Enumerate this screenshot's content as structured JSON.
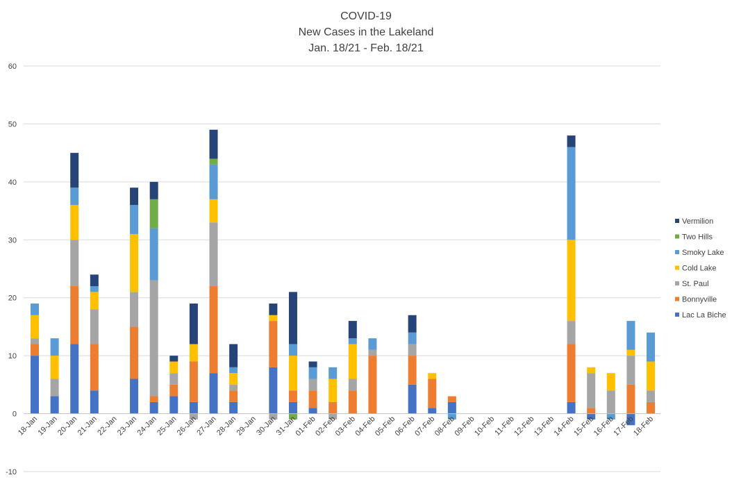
{
  "chart_data": {
    "type": "bar",
    "stacked": true,
    "title": [
      "COVID-19",
      "New Cases in the Lakeland",
      "Jan. 18/21 - Feb. 18/21"
    ],
    "xlabel": "",
    "ylabel": "",
    "ylim": [
      -10,
      60
    ],
    "yticks": [
      -10,
      0,
      10,
      20,
      30,
      40,
      50,
      60
    ],
    "grid": true,
    "legend_position": "right",
    "categories": [
      "18-Jan",
      "19-Jan",
      "20-Jan",
      "21-Jan",
      "22-Jan",
      "23-Jan",
      "24-Jan",
      "25-Jan",
      "26-Jan",
      "27-Jan",
      "28-Jan",
      "29-Jan",
      "30-Jan",
      "31-Jan",
      "01-Feb",
      "02-Feb",
      "03-Feb",
      "04-Feb",
      "05-Feb",
      "06-Feb",
      "07-Feb",
      "08-Feb",
      "09-Feb",
      "10-Feb",
      "11-Feb",
      "12-Feb",
      "13-Feb",
      "14-Feb",
      "15-Feb",
      "16-Feb",
      "17-Feb",
      "18-Feb"
    ],
    "series": [
      {
        "name": "Lac La Biche",
        "color": "#4472C4",
        "values": [
          10,
          3,
          12,
          4,
          0,
          6,
          2,
          3,
          2,
          7,
          2,
          0,
          8,
          2,
          1,
          0,
          0,
          0,
          0,
          5,
          1,
          2,
          0,
          0,
          0,
          0,
          0,
          2,
          -1,
          0,
          -2,
          0
        ]
      },
      {
        "name": "Bonnyville",
        "color": "#ED7D31",
        "values": [
          2,
          0,
          10,
          8,
          0,
          9,
          1,
          2,
          7,
          15,
          2,
          0,
          8,
          2,
          3,
          2,
          4,
          10,
          0,
          5,
          5,
          1,
          0,
          0,
          0,
          0,
          0,
          10,
          1,
          0,
          5,
          2
        ]
      },
      {
        "name": "St. Paul",
        "color": "#A5A5A5",
        "values": [
          1,
          3,
          8,
          6,
          0,
          6,
          20,
          2,
          -1,
          11,
          1,
          0,
          -1,
          0,
          2,
          -1,
          2,
          1,
          0,
          2,
          0,
          0,
          0,
          0,
          0,
          0,
          0,
          4,
          6,
          4,
          5,
          2
        ]
      },
      {
        "name": "Cold Lake",
        "color": "#FFC000",
        "values": [
          4,
          4,
          6,
          3,
          0,
          10,
          0,
          2,
          3,
          4,
          2,
          0,
          1,
          6,
          0,
          4,
          6,
          0,
          0,
          0,
          1,
          0,
          0,
          0,
          0,
          0,
          0,
          14,
          1,
          3,
          1,
          5
        ]
      },
      {
        "name": "Smoky Lake",
        "color": "#5B9BD5",
        "values": [
          2,
          3,
          3,
          1,
          0,
          5,
          9,
          0,
          0,
          6,
          1,
          0,
          0,
          2,
          2,
          2,
          1,
          2,
          0,
          2,
          0,
          -1,
          0,
          0,
          0,
          0,
          0,
          16,
          0,
          -1,
          5,
          5
        ]
      },
      {
        "name": "Two Hills",
        "color": "#70AD47",
        "values": [
          0,
          0,
          0,
          0,
          0,
          0,
          5,
          0,
          0,
          1,
          0,
          0,
          0,
          -1,
          0,
          0,
          0,
          0,
          0,
          0,
          0,
          0,
          0,
          0,
          0,
          0,
          0,
          0,
          0,
          0,
          0,
          0
        ]
      },
      {
        "name": "Vermilion",
        "color": "#264478",
        "values": [
          0,
          0,
          6,
          2,
          0,
          3,
          3,
          1,
          7,
          5,
          4,
          0,
          2,
          9,
          1,
          0,
          3,
          0,
          0,
          3,
          0,
          0,
          0,
          0,
          0,
          0,
          0,
          2,
          0,
          0,
          0,
          0
        ]
      }
    ]
  }
}
